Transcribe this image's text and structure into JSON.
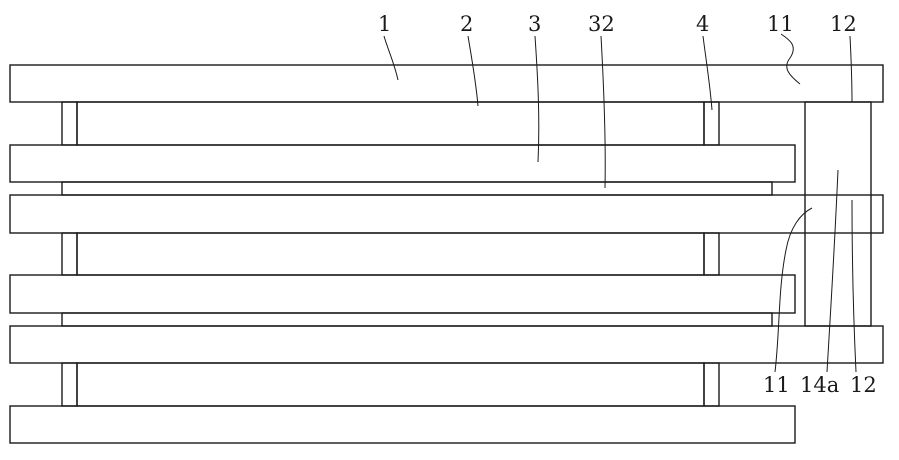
{
  "labels": {
    "l1": "1",
    "l2": "2",
    "l3": "3",
    "l32": "32",
    "l4": "4",
    "l11_top": "11",
    "l12_top": "12",
    "l11_bottom": "11",
    "l14a": "14a",
    "l12_bottom": "12"
  },
  "colors": {
    "line": "#1a1a1a",
    "background": "#ffffff"
  }
}
